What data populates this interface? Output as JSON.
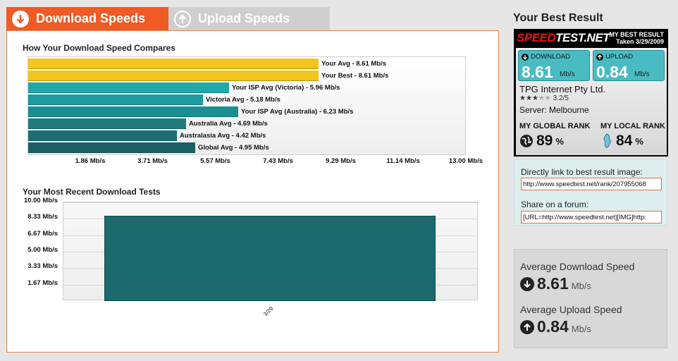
{
  "tabs": {
    "download_label": "Download Speeds",
    "upload_label": "Upload Speeds"
  },
  "compare_section": {
    "title": "How Your Download Speed Compares"
  },
  "recent_section": {
    "title": "Your Most Recent Download Tests"
  },
  "chart_data": [
    {
      "type": "bar",
      "orientation": "horizontal",
      "title": "How Your Download Speed Compares",
      "unit": "Mb/s",
      "xlim": [
        0,
        13.0
      ],
      "x_ticks": [
        "1.86 Mb/s",
        "3.71 Mb/s",
        "5.57 Mb/s",
        "7.43 Mb/s",
        "9.29 Mb/s",
        "11.14 Mb/s",
        "13.00 Mb/s"
      ],
      "categories": [
        "Your Avg",
        "Your Best",
        "Your ISP Avg (Victoria)",
        "Victoria Avg",
        "Your ISP Avg (Australia)",
        "Australia Avg",
        "Australasia Avg",
        "Global Avg"
      ],
      "values": [
        8.61,
        8.61,
        5.96,
        5.18,
        6.23,
        4.69,
        4.42,
        4.95
      ],
      "labels": [
        "Your Avg - 8.61 Mb/s",
        "Your Best - 8.61 Mb/s",
        "Your ISP Avg (Victoria) - 5.96 Mb/s",
        "Victoria Avg - 5.18 Mb/s",
        "Your ISP Avg (Australia) - 6.23 Mb/s",
        "Australia Avg - 4.69 Mb/s",
        "Australasia Avg - 4.42 Mb/s",
        "Global Avg - 4.95 Mb/s"
      ],
      "colors": [
        "#f2c51c",
        "#f2c51c",
        "#1fa9a9",
        "#1c9c9e",
        "#1a8f93",
        "#1f7c80",
        "#1b6e72",
        "#1a5f63"
      ]
    },
    {
      "type": "bar",
      "title": "Your Most Recent Download Tests",
      "categories": [
        "3/29"
      ],
      "values": [
        8.61
      ],
      "ylim": [
        0,
        10.0
      ],
      "y_ticks": [
        "10.00 Mb/s",
        "8.33 Mb/s",
        "6.67 Mb/s",
        "5.00 Mb/s",
        "3.33 Mb/s",
        "1.67 Mb/s"
      ],
      "color": "#1d6a6e"
    }
  ],
  "best_result": {
    "title": "Your Best Result",
    "logo_text_a": "SPEED",
    "logo_text_b": "TEST.NET",
    "badge_line1": "MY BEST RESULT",
    "badge_line2": "Taken 3/29/2009",
    "download_label": "DOWNLOAD",
    "download_value": "8.61",
    "upload_label": "UPLOAD",
    "upload_value": "0.84",
    "unit": "Mb/s",
    "isp_name": "TPG Internet Pty Ltd.",
    "stars": "★★★★★",
    "rating": "3.2/5",
    "server": "Server: Melbourne",
    "global_rank_label": "MY GLOBAL RANK",
    "global_rank_value": "89",
    "local_rank_label": "MY LOCAL RANK",
    "local_rank_value": "84",
    "percent": "%"
  },
  "share": {
    "link_label": "Directly link to best result image:",
    "link_value": "http://www.speedtest.net/rank/207955068",
    "forum_label": "Share on a forum:",
    "forum_value": "[URL=http://www.speedtest.net][IMG]http:"
  },
  "averages": {
    "download_label": "Average Download Speed",
    "download_value": "8.61",
    "upload_label": "Average Upload Speed",
    "upload_value": "0.84",
    "unit": "Mb/s"
  },
  "colors": {
    "accent": "#f05a24",
    "teal": "#49bcc3",
    "gold": "#f2c51c"
  }
}
